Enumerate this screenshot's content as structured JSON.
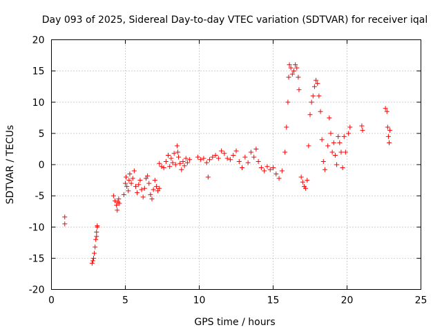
{
  "chart_data": {
    "type": "scatter",
    "title": "Day 093 of 2025, Sidereal Day-to-day VTEC variation (SDTVAR) for receiver iqal",
    "xlabel": "GPS time / hours",
    "ylabel": "SDTVAR / TECUs",
    "xlim": [
      0,
      25
    ],
    "ylim": [
      -20,
      20
    ],
    "xticks": [
      0,
      5,
      10,
      15,
      20,
      25
    ],
    "yticks": [
      -20,
      -15,
      -10,
      -5,
      0,
      5,
      10,
      15,
      20
    ],
    "grid": true,
    "marker": "+",
    "color": "#ff0000",
    "series": [
      {
        "name": "SDTVAR",
        "points": [
          [
            0.9,
            -8.4
          ],
          [
            0.9,
            -9.5
          ],
          [
            2.75,
            -15.8
          ],
          [
            2.8,
            -15.4
          ],
          [
            2.85,
            -15.0
          ],
          [
            2.9,
            -14.2
          ],
          [
            2.95,
            -13.2
          ],
          [
            3.0,
            -12.0
          ],
          [
            3.05,
            -10.8
          ],
          [
            3.1,
            -10.0
          ],
          [
            3.05,
            -11.5
          ],
          [
            3.1,
            -9.8
          ],
          [
            4.2,
            -5.0
          ],
          [
            4.3,
            -5.8
          ],
          [
            4.4,
            -6.5
          ],
          [
            4.45,
            -7.3
          ],
          [
            4.5,
            -6.0
          ],
          [
            4.55,
            -5.5
          ],
          [
            4.6,
            -6.2
          ],
          [
            4.9,
            -4.8
          ],
          [
            5.0,
            -3.0
          ],
          [
            5.05,
            -2.0
          ],
          [
            5.1,
            -3.5
          ],
          [
            5.2,
            -4.2
          ],
          [
            5.25,
            -2.5
          ],
          [
            5.3,
            -1.5
          ],
          [
            5.4,
            -3.0
          ],
          [
            5.5,
            -2.2
          ],
          [
            5.6,
            -1.0
          ],
          [
            5.7,
            -3.5
          ],
          [
            5.8,
            -4.5
          ],
          [
            5.9,
            -3.2
          ],
          [
            6.0,
            -2.5
          ],
          [
            6.1,
            -4.0
          ],
          [
            6.2,
            -5.2
          ],
          [
            6.3,
            -3.8
          ],
          [
            6.4,
            -2.2
          ],
          [
            6.5,
            -1.8
          ],
          [
            6.6,
            -3.0
          ],
          [
            6.7,
            -4.8
          ],
          [
            6.8,
            -5.5
          ],
          [
            6.9,
            -4.0
          ],
          [
            7.0,
            -2.5
          ],
          [
            7.1,
            -3.5
          ],
          [
            7.2,
            -4.2
          ],
          [
            7.3,
            -3.8
          ],
          [
            7.3,
            0.2
          ],
          [
            7.45,
            -0.3
          ],
          [
            7.6,
            -0.5
          ],
          [
            7.75,
            0.5
          ],
          [
            7.9,
            1.5
          ],
          [
            8.0,
            -0.3
          ],
          [
            8.1,
            1.0
          ],
          [
            8.2,
            0.3
          ],
          [
            8.3,
            1.8
          ],
          [
            8.4,
            0.0
          ],
          [
            8.5,
            3.0
          ],
          [
            8.55,
            2.0
          ],
          [
            8.6,
            1.2
          ],
          [
            8.7,
            0.2
          ],
          [
            8.8,
            -0.8
          ],
          [
            8.9,
            0.5
          ],
          [
            9.0,
            -0.2
          ],
          [
            9.1,
            1.0
          ],
          [
            9.2,
            0.3
          ],
          [
            9.35,
            0.8
          ],
          [
            9.9,
            1.2
          ],
          [
            10.1,
            0.8
          ],
          [
            10.3,
            1.0
          ],
          [
            10.5,
            0.3
          ],
          [
            10.6,
            -2.0
          ],
          [
            10.7,
            0.8
          ],
          [
            10.9,
            1.2
          ],
          [
            11.1,
            1.5
          ],
          [
            11.3,
            1.0
          ],
          [
            11.5,
            2.2
          ],
          [
            11.7,
            1.8
          ],
          [
            11.9,
            1.0
          ],
          [
            12.1,
            0.8
          ],
          [
            12.3,
            1.5
          ],
          [
            12.5,
            2.2
          ],
          [
            12.7,
            0.5
          ],
          [
            12.9,
            -0.5
          ],
          [
            13.1,
            1.2
          ],
          [
            13.3,
            0.3
          ],
          [
            13.5,
            2.0
          ],
          [
            13.7,
            1.2
          ],
          [
            13.85,
            2.5
          ],
          [
            14.0,
            0.5
          ],
          [
            14.2,
            -0.5
          ],
          [
            14.4,
            -1.0
          ],
          [
            14.6,
            -0.3
          ],
          [
            14.8,
            -0.8
          ],
          [
            15.0,
            -0.5
          ],
          [
            15.2,
            -1.5
          ],
          [
            15.4,
            -2.2
          ],
          [
            15.6,
            -1.0
          ],
          [
            15.8,
            2.0
          ],
          [
            15.9,
            6.0
          ],
          [
            16.0,
            10.0
          ],
          [
            16.05,
            14.0
          ],
          [
            16.1,
            16.0
          ],
          [
            16.2,
            15.5
          ],
          [
            16.3,
            14.5
          ],
          [
            16.4,
            15.0
          ],
          [
            16.5,
            16.0
          ],
          [
            16.6,
            15.5
          ],
          [
            16.7,
            14.0
          ],
          [
            16.75,
            12.0
          ],
          [
            16.9,
            -2.0
          ],
          [
            17.0,
            -2.8
          ],
          [
            17.1,
            -3.5
          ],
          [
            17.2,
            -3.8
          ],
          [
            17.3,
            -2.5
          ],
          [
            17.4,
            3.0
          ],
          [
            17.5,
            8.0
          ],
          [
            17.6,
            10.0
          ],
          [
            17.7,
            11.0
          ],
          [
            17.8,
            12.5
          ],
          [
            17.9,
            13.5
          ],
          [
            18.0,
            13.0
          ],
          [
            18.1,
            11.0
          ],
          [
            18.2,
            8.5
          ],
          [
            18.3,
            4.0
          ],
          [
            18.4,
            0.5
          ],
          [
            18.5,
            -0.8
          ],
          [
            18.7,
            3.0
          ],
          [
            18.8,
            7.5
          ],
          [
            18.9,
            5.0
          ],
          [
            19.0,
            2.0
          ],
          [
            19.1,
            3.5
          ],
          [
            19.2,
            1.5
          ],
          [
            19.3,
            0.0
          ],
          [
            19.4,
            4.5
          ],
          [
            19.5,
            3.5
          ],
          [
            19.6,
            2.0
          ],
          [
            19.7,
            -0.5
          ],
          [
            19.8,
            4.5
          ],
          [
            19.9,
            2.0
          ],
          [
            20.2,
            6.0
          ],
          [
            20.1,
            5.0
          ],
          [
            21.0,
            6.2
          ],
          [
            21.05,
            5.5
          ],
          [
            22.6,
            9.0
          ],
          [
            22.7,
            8.5
          ],
          [
            22.75,
            6.0
          ],
          [
            22.8,
            4.5
          ],
          [
            22.85,
            3.5
          ],
          [
            22.9,
            5.5
          ]
        ]
      }
    ]
  }
}
